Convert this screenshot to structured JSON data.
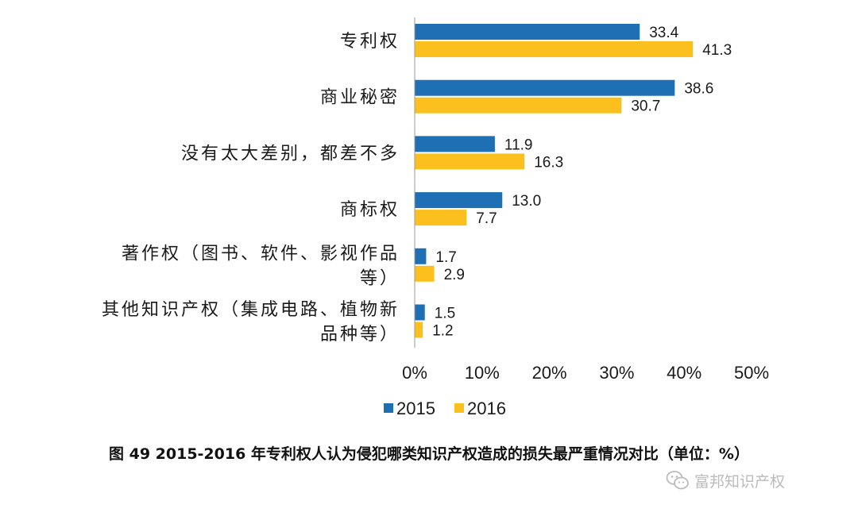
{
  "chart_data": {
    "type": "bar",
    "orientation": "horizontal",
    "categories": [
      [
        "专利权"
      ],
      [
        "商业秘密"
      ],
      [
        "没有太大差别，都差不多"
      ],
      [
        "商标权"
      ],
      [
        "著作权（图书、软件、影视作品",
        "等）"
      ],
      [
        "其他知识产权（集成电路、植物新",
        "品种等）"
      ]
    ],
    "series": [
      {
        "name": "2015",
        "color": "#1f6fb4",
        "values": [
          33.4,
          38.6,
          11.9,
          13.0,
          1.7,
          1.5
        ],
        "labels": [
          "33.4",
          "38.6",
          "11.9",
          "13.0",
          "1.7",
          "1.5"
        ]
      },
      {
        "name": "2016",
        "color": "#fcc01e",
        "values": [
          41.3,
          30.7,
          16.3,
          7.7,
          2.9,
          1.2
        ],
        "labels": [
          "41.3",
          "30.7",
          "16.3",
          "7.7",
          "2.9",
          "1.2"
        ]
      }
    ],
    "x_ticks": [
      "0%",
      "10%",
      "20%",
      "30%",
      "40%",
      "50%"
    ],
    "xlim": [
      0,
      50
    ],
    "grid": false,
    "legend_position": "bottom"
  },
  "caption": "图 49 2015-2016 年专利权人认为侵犯哪类知识产权造成的损失最严重情况对比（单位：%）",
  "watermark": {
    "text": "富邦知识产权",
    "icon": "wechat-icon"
  }
}
